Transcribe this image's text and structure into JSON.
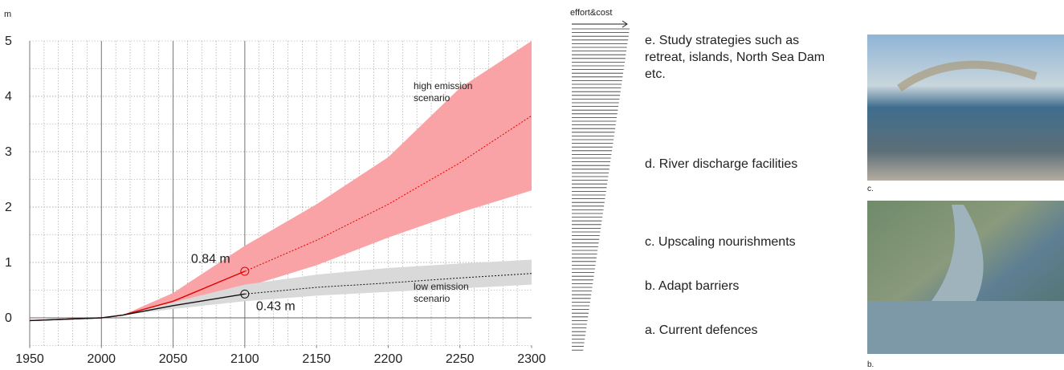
{
  "chart_data": {
    "type": "line",
    "y_label": "m",
    "xlim": [
      1950,
      2300
    ],
    "xticks": [
      1950,
      2000,
      2050,
      2100,
      2150,
      2200,
      2250,
      2300
    ],
    "ylim": [
      -0.5,
      5
    ],
    "yticks": [
      0,
      1,
      2,
      3,
      4,
      5
    ],
    "grid": true,
    "x_minor_step": 10,
    "y_minor_step": 0.5,
    "solid_gridlines_x": [
      2000,
      2050,
      2100
    ],
    "projection_from": 2100,
    "series": [
      {
        "name": "high emission scenario",
        "color": "#e00000",
        "band_color": "#f9a3a6",
        "x": [
          1950,
          2000,
          2015,
          2050,
          2100,
          2150,
          2200,
          2250,
          2300
        ],
        "values": [
          -0.05,
          0,
          0.05,
          0.3,
          0.84,
          1.4,
          2.05,
          2.8,
          3.65
        ],
        "band_high": [
          -0.05,
          0,
          0.05,
          0.45,
          1.3,
          2.05,
          2.9,
          4.15,
          5
        ],
        "band_low": [
          -0.05,
          0,
          0.05,
          0.18,
          0.55,
          0.95,
          1.45,
          1.9,
          2.3
        ],
        "marker": {
          "x": 2100,
          "value": 0.84,
          "label": "0.84 m"
        }
      },
      {
        "name": "low emission scenario",
        "color": "#111111",
        "band_color": "#d9d9d9",
        "x": [
          1950,
          2000,
          2015,
          2050,
          2100,
          2150,
          2200,
          2250,
          2300
        ],
        "values": [
          -0.05,
          0,
          0.05,
          0.22,
          0.43,
          0.55,
          0.63,
          0.72,
          0.8
        ],
        "band_high": [
          -0.05,
          0,
          0.05,
          0.28,
          0.6,
          0.78,
          0.9,
          0.98,
          1.05
        ],
        "band_low": [
          -0.05,
          0,
          0.05,
          0.16,
          0.3,
          0.4,
          0.47,
          0.53,
          0.6
        ],
        "marker": {
          "x": 2100,
          "value": 0.43,
          "label": "0.43 m"
        }
      }
    ]
  },
  "strategies": {
    "axis_label": "effort&cost",
    "items": [
      "e. Study strategies such as retreat, islands, North Sea Dam etc.",
      "d. River discharge facilities",
      "c. Upscaling nourishments",
      "b. Adapt barriers",
      "a. Current defences"
    ]
  },
  "photos": [
    {
      "caption": "c."
    },
    {
      "caption": "b."
    }
  ]
}
